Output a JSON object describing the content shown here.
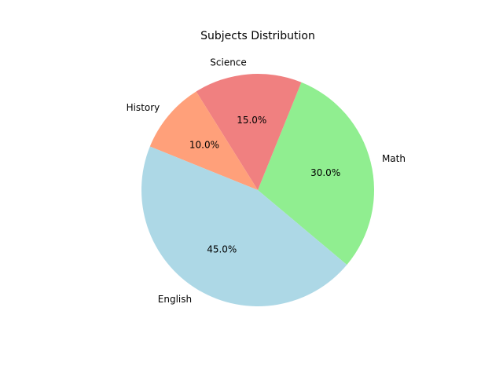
{
  "chart_data": {
    "type": "pie",
    "title": "Subjects Distribution",
    "labels": [
      "Math",
      "Science",
      "History",
      "English"
    ],
    "values": [
      30,
      15,
      10,
      45
    ],
    "percent_labels": [
      "30.0%",
      "15.0%",
      "10.0%",
      "45.0%"
    ],
    "colors": [
      "#90ee90",
      "#f08080",
      "#ffa07a",
      "#add8e6"
    ],
    "start_angle_deg": -40,
    "direction": "counterclockwise"
  }
}
